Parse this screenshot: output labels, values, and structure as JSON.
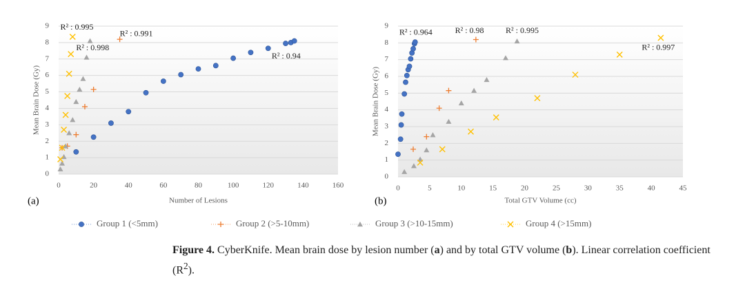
{
  "chart_data": [
    {
      "type": "scatter",
      "panel_label": "(a)",
      "xlabel": "Number of Lesions",
      "ylabel": "Mean Brain Dose (Gy)",
      "xlim": [
        0,
        160
      ],
      "xticks": [
        0,
        20,
        40,
        60,
        80,
        100,
        120,
        140,
        160
      ],
      "ylim": [
        0,
        9
      ],
      "yticks": [
        0,
        1,
        2,
        3,
        4,
        5,
        6,
        7,
        8,
        9
      ],
      "grid": true,
      "series": [
        {
          "name": "Group 1 (<5mm)",
          "color": "#4472c4",
          "marker": "circle",
          "x": [
            10,
            20,
            30,
            40,
            50,
            60,
            70,
            80,
            90,
            100,
            110,
            120,
            130,
            133,
            135
          ],
          "values": [
            1.35,
            2.25,
            3.1,
            3.8,
            4.95,
            5.65,
            6.05,
            6.4,
            6.6,
            7.05,
            7.4,
            7.65,
            7.95,
            8.0,
            8.1
          ]
        },
        {
          "name": "Group 2 (>5-10mm)",
          "color": "#ed7d31",
          "marker": "plus",
          "x": [
            2,
            5,
            10,
            15,
            20,
            35
          ],
          "values": [
            1.6,
            1.7,
            2.4,
            4.1,
            5.15,
            8.2
          ]
        },
        {
          "name": "Group 3 (>10-15mm)",
          "color": "#a5a5a5",
          "marker": "triangle",
          "x": [
            1,
            2,
            3,
            4,
            6,
            8,
            10,
            12,
            14,
            16,
            18
          ],
          "values": [
            0.3,
            0.65,
            1.05,
            1.7,
            2.5,
            3.3,
            4.4,
            5.15,
            5.8,
            7.1,
            8.1
          ]
        },
        {
          "name": "Group 4 (>15mm)",
          "color": "#ffc000",
          "marker": "x",
          "x": [
            1,
            2,
            3,
            4,
            5,
            6,
            7,
            8
          ],
          "values": [
            0.9,
            1.6,
            2.7,
            3.6,
            4.75,
            6.1,
            7.3,
            8.35
          ]
        }
      ],
      "annotations": [
        {
          "text": "R² : 0.995",
          "x": 1,
          "y": 8.9
        },
        {
          "text": "R² : 0.991",
          "x": 35,
          "y": 8.5
        },
        {
          "text": "R² : 0.998",
          "x": 10,
          "y": 7.65
        },
        {
          "text": "R² : 0.94",
          "x": 122,
          "y": 7.15
        }
      ]
    },
    {
      "type": "scatter",
      "panel_label": "(b)",
      "xlabel": "Total GTV Volume (cc)",
      "ylabel": "Mean Brain Dose (Gy)",
      "xlim": [
        0,
        45
      ],
      "xticks": [
        0,
        5,
        10,
        15,
        20,
        25,
        30,
        35,
        40,
        45
      ],
      "ylim": [
        0,
        9
      ],
      "yticks": [
        0,
        1,
        2,
        3,
        4,
        5,
        6,
        7,
        8,
        9
      ],
      "grid": true,
      "series": [
        {
          "name": "Group 1 (<5mm)",
          "color": "#4472c4",
          "marker": "circle",
          "x": [
            0,
            0.4,
            0.5,
            0.6,
            1,
            1.2,
            1.4,
            1.6,
            1.8,
            2,
            2.2,
            2.4,
            2.6,
            2.7
          ],
          "values": [
            1.35,
            2.25,
            3.1,
            3.75,
            4.95,
            5.65,
            6.05,
            6.4,
            6.6,
            7.05,
            7.4,
            7.65,
            7.95,
            8.05
          ]
        },
        {
          "name": "Group 2 (>5-10mm)",
          "color": "#ed7d31",
          "marker": "plus",
          "x": [
            2.4,
            4.5,
            6.5,
            8,
            12.3
          ],
          "values": [
            1.65,
            2.4,
            4.1,
            5.15,
            8.2
          ]
        },
        {
          "name": "Group 3 (>10-15mm)",
          "color": "#a5a5a5",
          "marker": "triangle",
          "x": [
            1,
            2.5,
            3.5,
            4.5,
            5.5,
            8,
            10,
            12,
            14,
            17,
            18.8
          ],
          "values": [
            0.3,
            0.65,
            1.05,
            1.6,
            2.5,
            3.3,
            4.4,
            5.15,
            5.8,
            7.1,
            8.1
          ]
        },
        {
          "name": "Group 4 (>15mm)",
          "color": "#ffc000",
          "marker": "x",
          "x": [
            3.5,
            7,
            11.5,
            15.5,
            22,
            28,
            35,
            41.5
          ],
          "values": [
            0.85,
            1.65,
            2.7,
            3.55,
            4.7,
            6.1,
            7.3,
            8.3
          ]
        }
      ],
      "annotations": [
        {
          "text": "R² : 0.964",
          "x": 0.2,
          "y": 8.6
        },
        {
          "text": "R² : 0.98",
          "x": 9,
          "y": 8.7
        },
        {
          "text": "R² : 0.995",
          "x": 17,
          "y": 8.7
        },
        {
          "text": "R² : 0.997",
          "x": 38.5,
          "y": 7.7
        }
      ]
    }
  ],
  "caption": [
    "Figure 4.",
    " CyberKnife. Mean brain dose by lesion number (",
    "a",
    ") and by total GTV volume (",
    "b",
    "). Linear correlation coefficient (R",
    "2",
    ")."
  ]
}
